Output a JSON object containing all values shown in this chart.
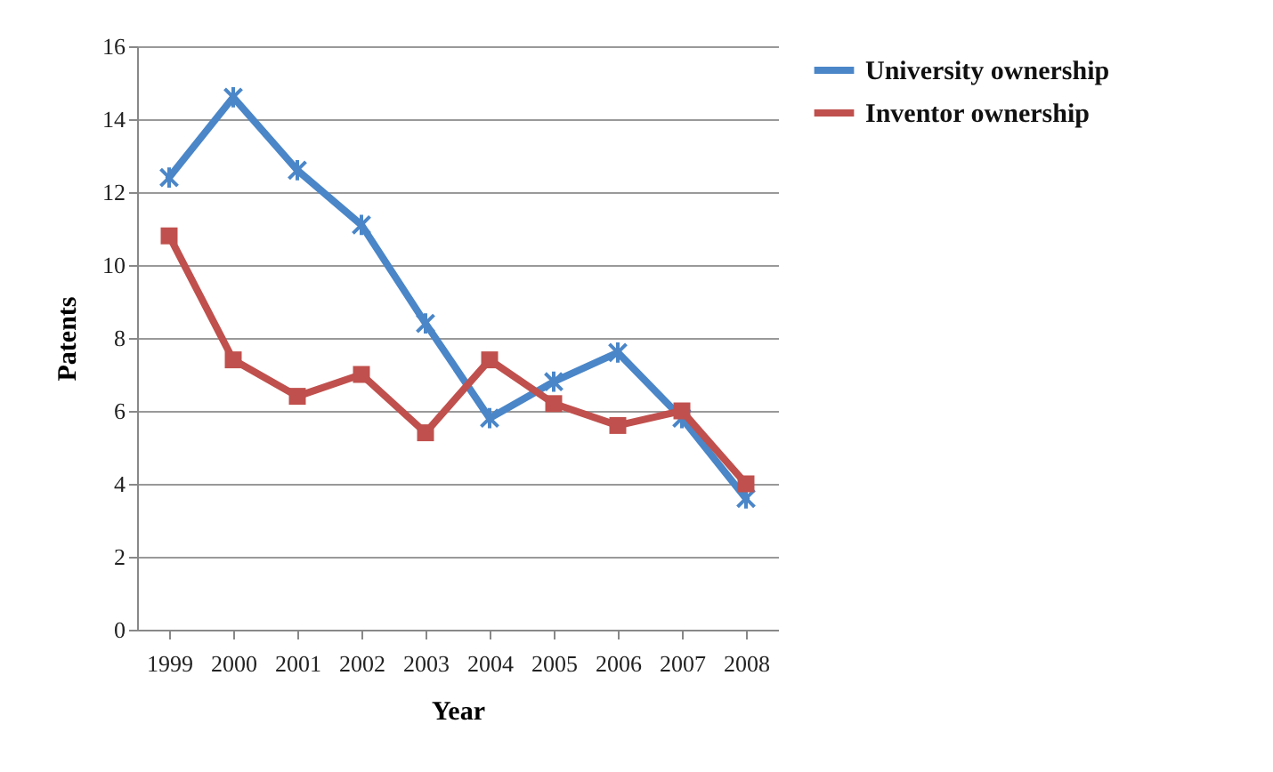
{
  "chart_data": {
    "type": "line",
    "xlabel": "Year",
    "ylabel": "Patents",
    "categories": [
      "1999",
      "2000",
      "2001",
      "2002",
      "2003",
      "2004",
      "2005",
      "2006",
      "2007",
      "2008"
    ],
    "series": [
      {
        "name": "University ownership",
        "color": "#4a86c8",
        "marker": "cross",
        "values": [
          12.4,
          14.6,
          12.6,
          11.1,
          8.4,
          5.8,
          6.8,
          7.6,
          5.8,
          3.6
        ]
      },
      {
        "name": "Inventor ownership",
        "color": "#c0504d",
        "marker": "square",
        "values": [
          10.8,
          7.4,
          6.4,
          7.0,
          5.4,
          7.4,
          6.2,
          5.6,
          6.0,
          4.0
        ]
      }
    ],
    "ylim": [
      0,
      16
    ],
    "yticks": [
      0,
      2,
      4,
      6,
      8,
      10,
      12,
      14,
      16
    ],
    "grid": "y",
    "legend": "right",
    "line_style": "solid"
  }
}
